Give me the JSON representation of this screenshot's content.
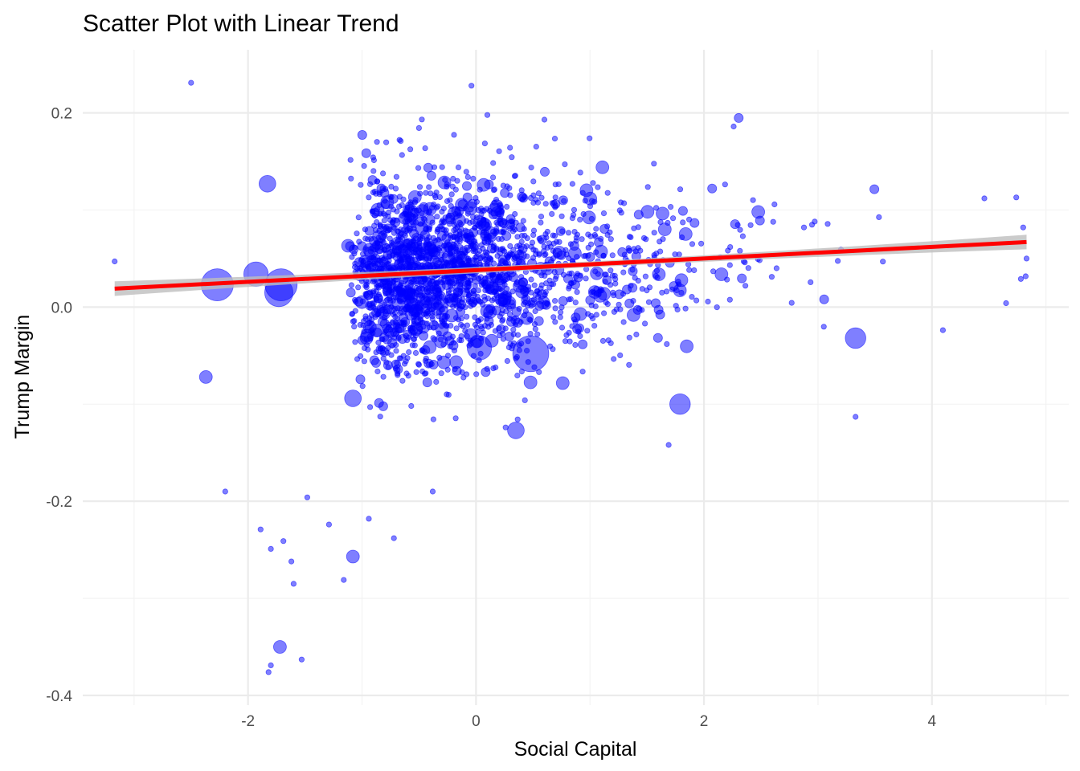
{
  "chart_data": {
    "type": "scatter",
    "title": "Scatter Plot with Linear Trend",
    "xlabel": "Social Capital",
    "ylabel": "Trump Margin",
    "xlim": [
      -3.45,
      5.2
    ],
    "ylim": [
      -0.41,
      0.265
    ],
    "xticks": [
      -2,
      0,
      2,
      4
    ],
    "xtick_labels": [
      "-2",
      "0",
      "2",
      "4"
    ],
    "yticks": [
      -0.4,
      -0.2,
      0.0,
      0.2
    ],
    "ytick_labels": [
      "-0.4",
      "-0.2",
      "0.0",
      "0.2"
    ],
    "grid": true,
    "legend": "none",
    "colors": {
      "points": "#0000ff",
      "trend_line": "#ff0000",
      "confidence_band": "#bebebe",
      "grid": "#ebebeb"
    },
    "trend": {
      "x": [
        -3.17,
        4.83
      ],
      "y": [
        0.019,
        0.067
      ],
      "ci_halfwidth_ends": 0.0075,
      "ci_halfwidth_center": 0.003
    },
    "notable_points": [
      {
        "x": -2.27,
        "y": 0.023,
        "size": 8
      },
      {
        "x": -1.93,
        "y": 0.034,
        "size": 6
      },
      {
        "x": -1.83,
        "y": 0.127,
        "size": 4
      },
      {
        "x": -1.73,
        "y": 0.015,
        "size": 7
      },
      {
        "x": -1.71,
        "y": 0.023,
        "size": 8
      },
      {
        "x": 0.35,
        "y": -0.127,
        "size": 4
      },
      {
        "x": 0.48,
        "y": -0.048,
        "size": 9
      },
      {
        "x": 0.03,
        "y": -0.042,
        "size": 6
      },
      {
        "x": 1.79,
        "y": -0.1,
        "size": 5
      },
      {
        "x": 3.33,
        "y": -0.032,
        "size": 5
      },
      {
        "x": -1.08,
        "y": -0.094,
        "size": 4
      },
      {
        "x": -1.08,
        "y": -0.257,
        "size": 3
      },
      {
        "x": -1.72,
        "y": -0.35,
        "size": 3
      },
      {
        "x": -2.37,
        "y": -0.072,
        "size": 3
      },
      {
        "x": -2.5,
        "y": 0.231,
        "size": 1
      },
      {
        "x": -0.04,
        "y": 0.228,
        "size": 1
      },
      {
        "x": -3.17,
        "y": 0.047,
        "size": 1
      },
      {
        "x": 4.83,
        "y": 0.05,
        "size": 1
      },
      {
        "x": -1.82,
        "y": -0.376,
        "size": 1
      },
      {
        "x": -1.8,
        "y": -0.369,
        "size": 1
      },
      {
        "x": -1.53,
        "y": -0.363,
        "size": 1
      },
      {
        "x": -2.2,
        "y": -0.19,
        "size": 1
      },
      {
        "x": -0.38,
        "y": -0.19,
        "size": 1
      },
      {
        "x": 3.33,
        "y": -0.113,
        "size": 1
      },
      {
        "x": 1.69,
        "y": -0.142,
        "size": 1
      },
      {
        "x": 0.6,
        "y": 0.193,
        "size": 1
      },
      {
        "x": 2.26,
        "y": 0.186,
        "size": 1
      },
      {
        "x": -0.94,
        "y": -0.218,
        "size": 1
      },
      {
        "x": -0.72,
        "y": -0.238,
        "size": 1
      },
      {
        "x": -1.6,
        "y": -0.285,
        "size": 1
      },
      {
        "x": -1.16,
        "y": -0.281,
        "size": 1
      },
      {
        "x": -1.8,
        "y": -0.249,
        "size": 1
      },
      {
        "x": -1.69,
        "y": -0.241,
        "size": 1
      },
      {
        "x": -1.62,
        "y": -0.262,
        "size": 1
      },
      {
        "x": -1.89,
        "y": -0.229,
        "size": 1
      },
      {
        "x": -1.48,
        "y": -0.196,
        "size": 1
      },
      {
        "x": -1.29,
        "y": -0.224,
        "size": 1
      },
      {
        "x": 4.46,
        "y": 0.112,
        "size": 1
      },
      {
        "x": 4.74,
        "y": 0.113,
        "size": 1
      },
      {
        "x": 4.8,
        "y": 0.082,
        "size": 1
      },
      {
        "x": 4.78,
        "y": 0.029,
        "size": 1
      },
      {
        "x": 4.65,
        "y": 0.004,
        "size": 1
      }
    ],
    "cluster": {
      "n_points": 2100,
      "seed": 20240517,
      "x_shape": 2.0,
      "x_scale": 0.55,
      "x_shift": -1.13,
      "x_min": -3.1,
      "x_max": 4.85,
      "y_sd": 0.05,
      "y_min": -0.33,
      "y_max": 0.21,
      "size_levels": [
        1,
        1,
        1,
        1,
        1,
        1,
        1,
        1,
        1,
        1,
        1,
        1,
        1,
        1,
        2,
        2,
        2,
        3
      ]
    }
  }
}
